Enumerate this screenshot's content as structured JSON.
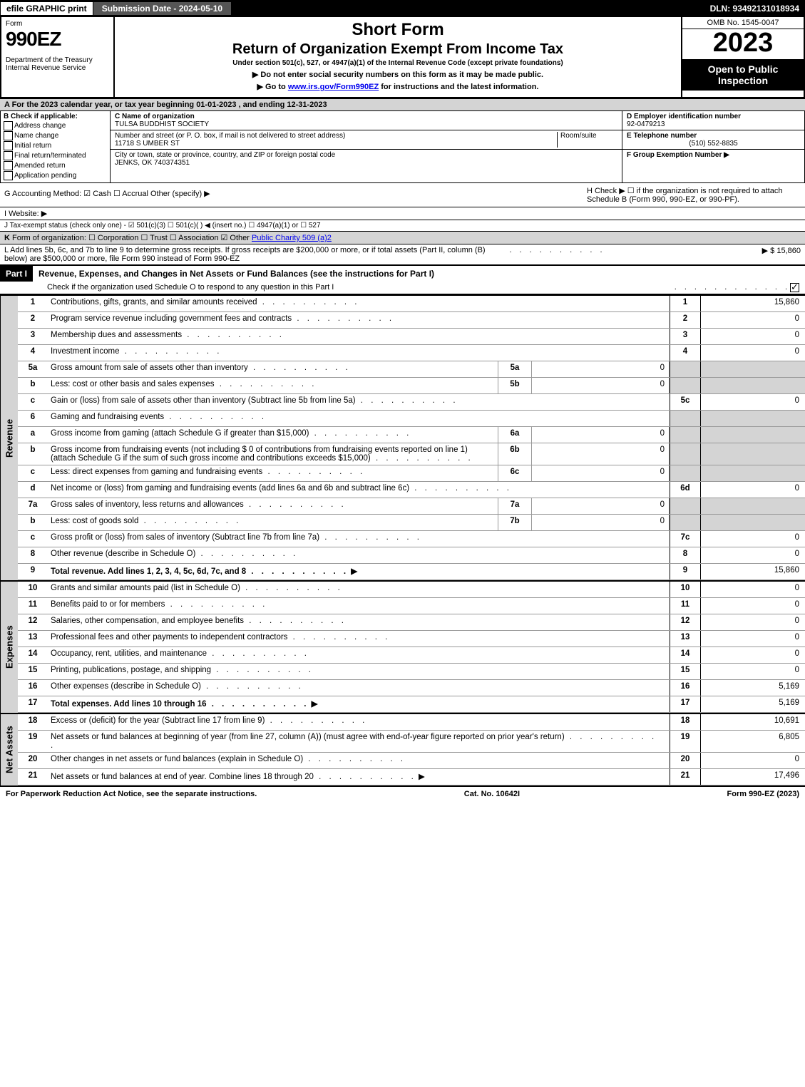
{
  "top": {
    "efile": "efile GRAPHIC print",
    "submission": "Submission Date - 2024-05-10",
    "dln": "DLN: 93492131018934"
  },
  "header": {
    "form_label": "Form",
    "form_num": "990EZ",
    "dept": "Department of the Treasury\nInternal Revenue Service",
    "title1": "Short Form",
    "title2": "Return of Organization Exempt From Income Tax",
    "subtitle": "Under section 501(c), 527, or 4947(a)(1) of the Internal Revenue Code (except private foundations)",
    "note1": "▶ Do not enter social security numbers on this form as it may be made public.",
    "note2": "▶ Go to www.irs.gov/Form990EZ for instructions and the latest information.",
    "omb": "OMB No. 1545-0047",
    "year": "2023",
    "open_inspect": "Open to Public Inspection"
  },
  "lineA": "A  For the 2023 calendar year, or tax year beginning 01-01-2023 , and ending 12-31-2023",
  "secB": {
    "title": "B  Check if applicable:",
    "opts": [
      "Address change",
      "Name change",
      "Initial return",
      "Final return/terminated",
      "Amended return",
      "Application pending"
    ]
  },
  "secC": {
    "name_label": "C Name of organization",
    "name": "TULSA BUDDHIST SOCIETY",
    "addr_label": "Number and street (or P. O. box, if mail is not delivered to street address)",
    "room_label": "Room/suite",
    "addr": "11718 S UMBER ST",
    "city_label": "City or town, state or province, country, and ZIP or foreign postal code",
    "city": "JENKS, OK  740374351"
  },
  "secD": {
    "ein_label": "D Employer identification number",
    "ein": "92-0479213",
    "phone_label": "E Telephone number",
    "phone": "(510) 552-8835",
    "group_label": "F Group Exemption Number  ▶"
  },
  "lineG": "G Accounting Method:  ☑ Cash  ☐ Accrual  Other (specify) ▶",
  "lineH": "H  Check ▶  ☐  if the organization is not required to attach Schedule B (Form 990, 990-EZ, or 990-PF).",
  "lineI": "I Website: ▶",
  "lineJ": "J Tax-exempt status (check only one) -  ☑ 501(c)(3)  ☐ 501(c)( )  ◀ (insert no.)  ☐ 4947(a)(1) or  ☐ 527",
  "lineK": "K Form of organization:   ☐ Corporation   ☐ Trust   ☐ Association   ☑ Other Public Charity 509 (a)2",
  "lineL": {
    "text": "L Add lines 5b, 6c, and 7b to line 9 to determine gross receipts. If gross receipts are $200,000 or more, or if total assets (Part II, column (B) below) are $500,000 or more, file Form 990 instead of Form 990-EZ",
    "amount": "▶ $ 15,860"
  },
  "part1": {
    "label": "Part I",
    "title": "Revenue, Expenses, and Changes in Net Assets or Fund Balances (see the instructions for Part I)",
    "check_note": "Check if the organization used Schedule O to respond to any question in this Part I"
  },
  "sides": {
    "rev": "Revenue",
    "exp": "Expenses",
    "net": "Net Assets"
  },
  "rows": [
    {
      "n": "1",
      "d": "Contributions, gifts, grants, and similar amounts received",
      "ln": "1",
      "v": "15,860"
    },
    {
      "n": "2",
      "d": "Program service revenue including government fees and contracts",
      "ln": "2",
      "v": "0"
    },
    {
      "n": "3",
      "d": "Membership dues and assessments",
      "ln": "3",
      "v": "0"
    },
    {
      "n": "4",
      "d": "Investment income",
      "ln": "4",
      "v": "0"
    },
    {
      "n": "5a",
      "d": "Gross amount from sale of assets other than inventory",
      "sub": "5a",
      "sv": "0"
    },
    {
      "n": "b",
      "d": "Less: cost or other basis and sales expenses",
      "sub": "5b",
      "sv": "0"
    },
    {
      "n": "c",
      "d": "Gain or (loss) from sale of assets other than inventory (Subtract line 5b from line 5a)",
      "ln": "5c",
      "v": "0"
    },
    {
      "n": "6",
      "d": "Gaming and fundraising events"
    },
    {
      "n": "a",
      "d": "Gross income from gaming (attach Schedule G if greater than $15,000)",
      "sub": "6a",
      "sv": "0"
    },
    {
      "n": "b",
      "d": "Gross income from fundraising events (not including $ 0  of contributions from fundraising events reported on line 1) (attach Schedule G if the sum of such gross income and contributions exceeds $15,000)",
      "sub": "6b",
      "sv": "0"
    },
    {
      "n": "c",
      "d": "Less: direct expenses from gaming and fundraising events",
      "sub": "6c",
      "sv": "0"
    },
    {
      "n": "d",
      "d": "Net income or (loss) from gaming and fundraising events (add lines 6a and 6b and subtract line 6c)",
      "ln": "6d",
      "v": "0"
    },
    {
      "n": "7a",
      "d": "Gross sales of inventory, less returns and allowances",
      "sub": "7a",
      "sv": "0"
    },
    {
      "n": "b",
      "d": "Less: cost of goods sold",
      "sub": "7b",
      "sv": "0"
    },
    {
      "n": "c",
      "d": "Gross profit or (loss) from sales of inventory (Subtract line 7b from line 7a)",
      "ln": "7c",
      "v": "0"
    },
    {
      "n": "8",
      "d": "Other revenue (describe in Schedule O)",
      "ln": "8",
      "v": "0"
    },
    {
      "n": "9",
      "d": "Total revenue. Add lines 1, 2, 3, 4, 5c, 6d, 7c, and 8",
      "ln": "9",
      "v": "15,860",
      "bold": true,
      "arrow": "▶"
    }
  ],
  "exp_rows": [
    {
      "n": "10",
      "d": "Grants and similar amounts paid (list in Schedule O)",
      "ln": "10",
      "v": "0"
    },
    {
      "n": "11",
      "d": "Benefits paid to or for members",
      "ln": "11",
      "v": "0"
    },
    {
      "n": "12",
      "d": "Salaries, other compensation, and employee benefits",
      "ln": "12",
      "v": "0"
    },
    {
      "n": "13",
      "d": "Professional fees and other payments to independent contractors",
      "ln": "13",
      "v": "0"
    },
    {
      "n": "14",
      "d": "Occupancy, rent, utilities, and maintenance",
      "ln": "14",
      "v": "0"
    },
    {
      "n": "15",
      "d": "Printing, publications, postage, and shipping",
      "ln": "15",
      "v": "0"
    },
    {
      "n": "16",
      "d": "Other expenses (describe in Schedule O)",
      "ln": "16",
      "v": "5,169"
    },
    {
      "n": "17",
      "d": "Total expenses. Add lines 10 through 16",
      "ln": "17",
      "v": "5,169",
      "bold": true,
      "arrow": "▶"
    }
  ],
  "net_rows": [
    {
      "n": "18",
      "d": "Excess or (deficit) for the year (Subtract line 17 from line 9)",
      "ln": "18",
      "v": "10,691"
    },
    {
      "n": "19",
      "d": "Net assets or fund balances at beginning of year (from line 27, column (A)) (must agree with end-of-year figure reported on prior year's return)",
      "ln": "19",
      "v": "6,805"
    },
    {
      "n": "20",
      "d": "Other changes in net assets or fund balances (explain in Schedule O)",
      "ln": "20",
      "v": "0"
    },
    {
      "n": "21",
      "d": "Net assets or fund balances at end of year. Combine lines 18 through 20",
      "ln": "21",
      "v": "17,496",
      "arrow": "▶"
    }
  ],
  "footer": {
    "left": "For Paperwork Reduction Act Notice, see the separate instructions.",
    "mid": "Cat. No. 10642I",
    "right": "Form 990-EZ (2023)"
  }
}
